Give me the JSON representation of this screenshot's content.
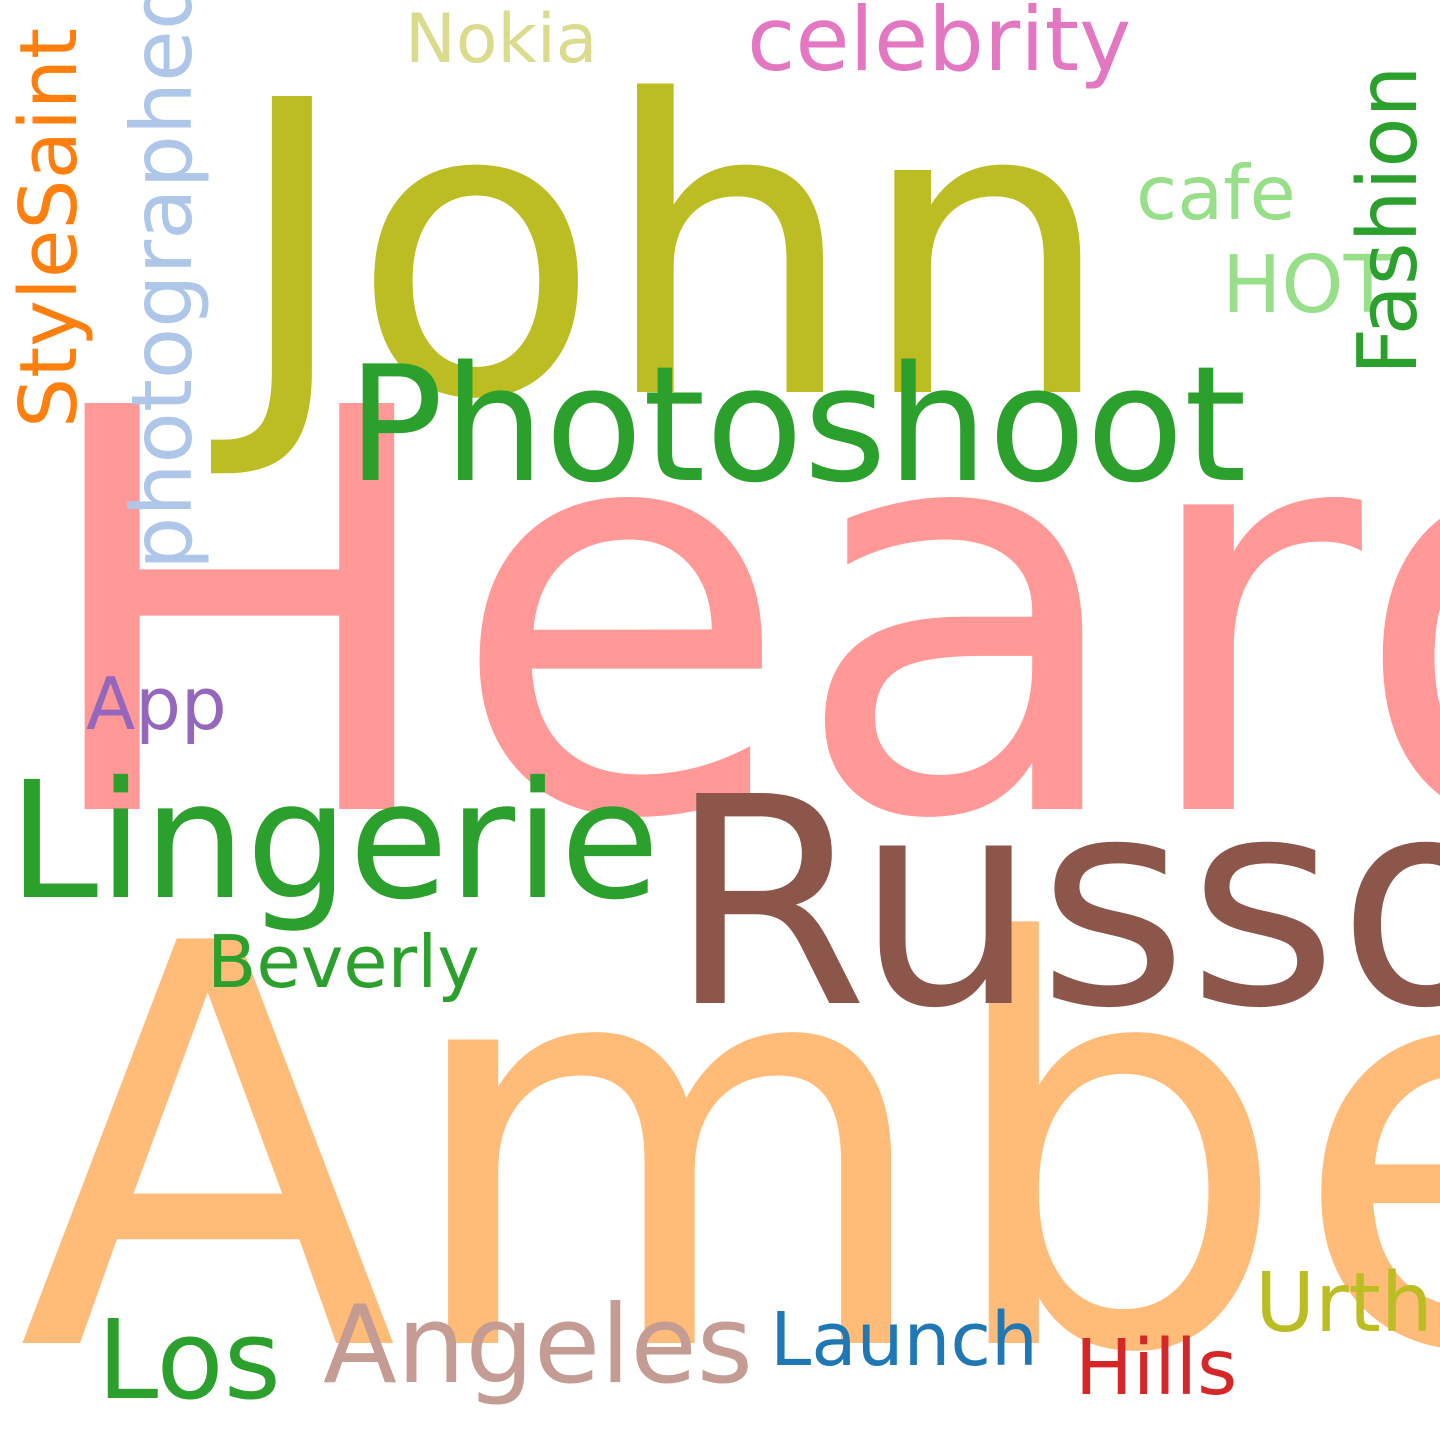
{
  "words": {
    "heard": {
      "text": "Heard",
      "color": "#ff9896"
    },
    "amber": {
      "text": "Amber",
      "color": "#ffbb78"
    },
    "john": {
      "text": "John",
      "color": "#bcbd22"
    },
    "russo": {
      "text": "Russo",
      "color": "#8c564b"
    },
    "photoshoot": {
      "text": "Photoshoot",
      "color": "#2ca02c"
    },
    "lingerie": {
      "text": "Lingerie",
      "color": "#2ca02c"
    },
    "angeles": {
      "text": "Angeles",
      "color": "#c49c94"
    },
    "los": {
      "text": "Los",
      "color": "#2ca02c"
    },
    "celebrity": {
      "text": "celebrity",
      "color": "#e377c2"
    },
    "photographed": {
      "text": "photographed",
      "color": "#aec7e8"
    },
    "stylesaint": {
      "text": "StyleSaint",
      "color": "#ff7f0e"
    },
    "fashion": {
      "text": "Fashion",
      "color": "#2ca02c"
    },
    "beverly": {
      "text": "Beverly",
      "color": "#2ca02c"
    },
    "launch": {
      "text": "Launch",
      "color": "#1f77b4"
    },
    "hills": {
      "text": "Hills",
      "color": "#d62728"
    },
    "urth": {
      "text": "Urth",
      "color": "#bcbd22"
    },
    "nokia": {
      "text": "Nokia",
      "color": "#dbdb8d"
    },
    "cafe": {
      "text": "cafe",
      "color": "#98df8a"
    },
    "hot": {
      "text": "HOT",
      "color": "#98df8a"
    },
    "app": {
      "text": "App",
      "color": "#9467bd"
    }
  }
}
